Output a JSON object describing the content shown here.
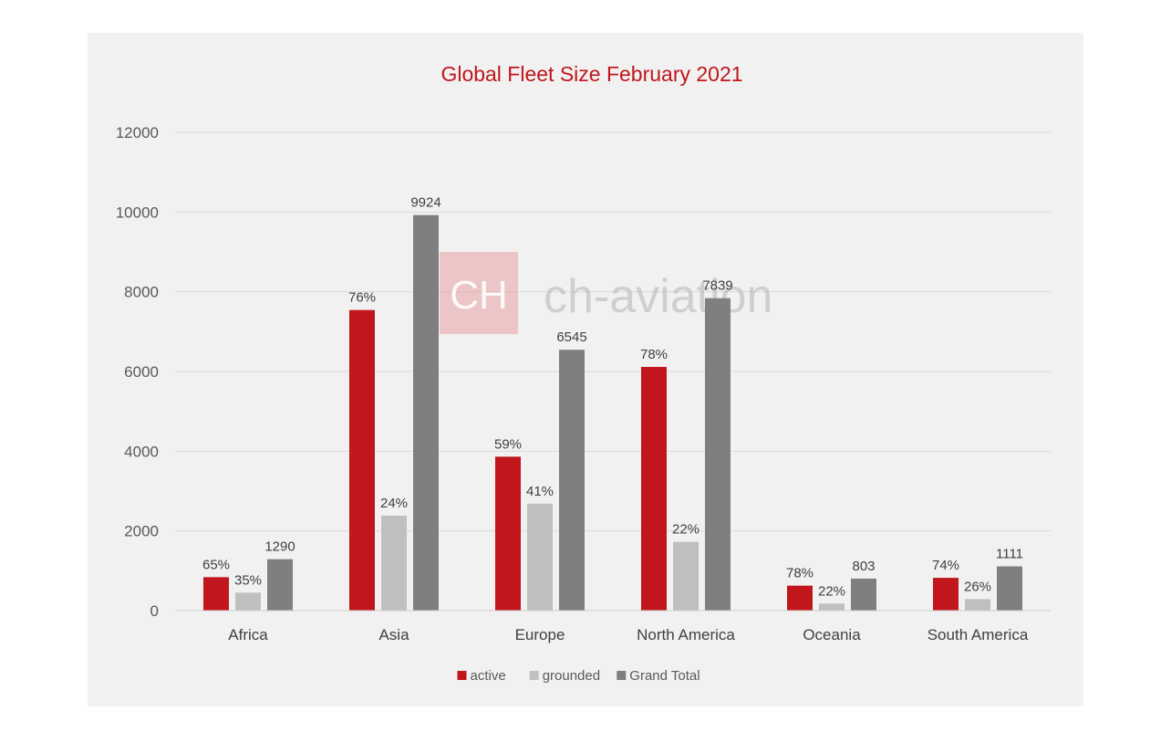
{
  "chart_data": {
    "type": "bar",
    "title": "Global Fleet Size February 2021",
    "xlabel": "",
    "ylabel": "",
    "ylim": [
      0,
      12000
    ],
    "yticks": [
      0,
      2000,
      4000,
      6000,
      8000,
      10000,
      12000
    ],
    "grid": true,
    "legend_position": "bottom",
    "categories": [
      "Africa",
      "Asia",
      "Europe",
      "North America",
      "Oceania",
      "South America"
    ],
    "series": [
      {
        "name": "active",
        "color": "#c0161c",
        "values": [
          839,
          7542,
          3862,
          6114,
          626,
          822
        ],
        "labels": [
          "65%",
          "76%",
          "59%",
          "78%",
          "78%",
          "74%"
        ]
      },
      {
        "name": "grounded",
        "color": "#bfbfbf",
        "values": [
          451,
          2382,
          2684,
          1725,
          177,
          289
        ],
        "labels": [
          "35%",
          "24%",
          "41%",
          "22%",
          "22%",
          "26%"
        ]
      },
      {
        "name": "Grand Total",
        "color": "#7f7f7f",
        "values": [
          1290,
          9924,
          6545,
          7839,
          803,
          1111
        ],
        "labels": [
          "1290",
          "9924",
          "6545",
          "7839",
          "803",
          "1111"
        ]
      }
    ]
  },
  "watermark": {
    "text": "ch-aviation",
    "logo_text": "CH",
    "logo_color": "#e8a0a3"
  }
}
